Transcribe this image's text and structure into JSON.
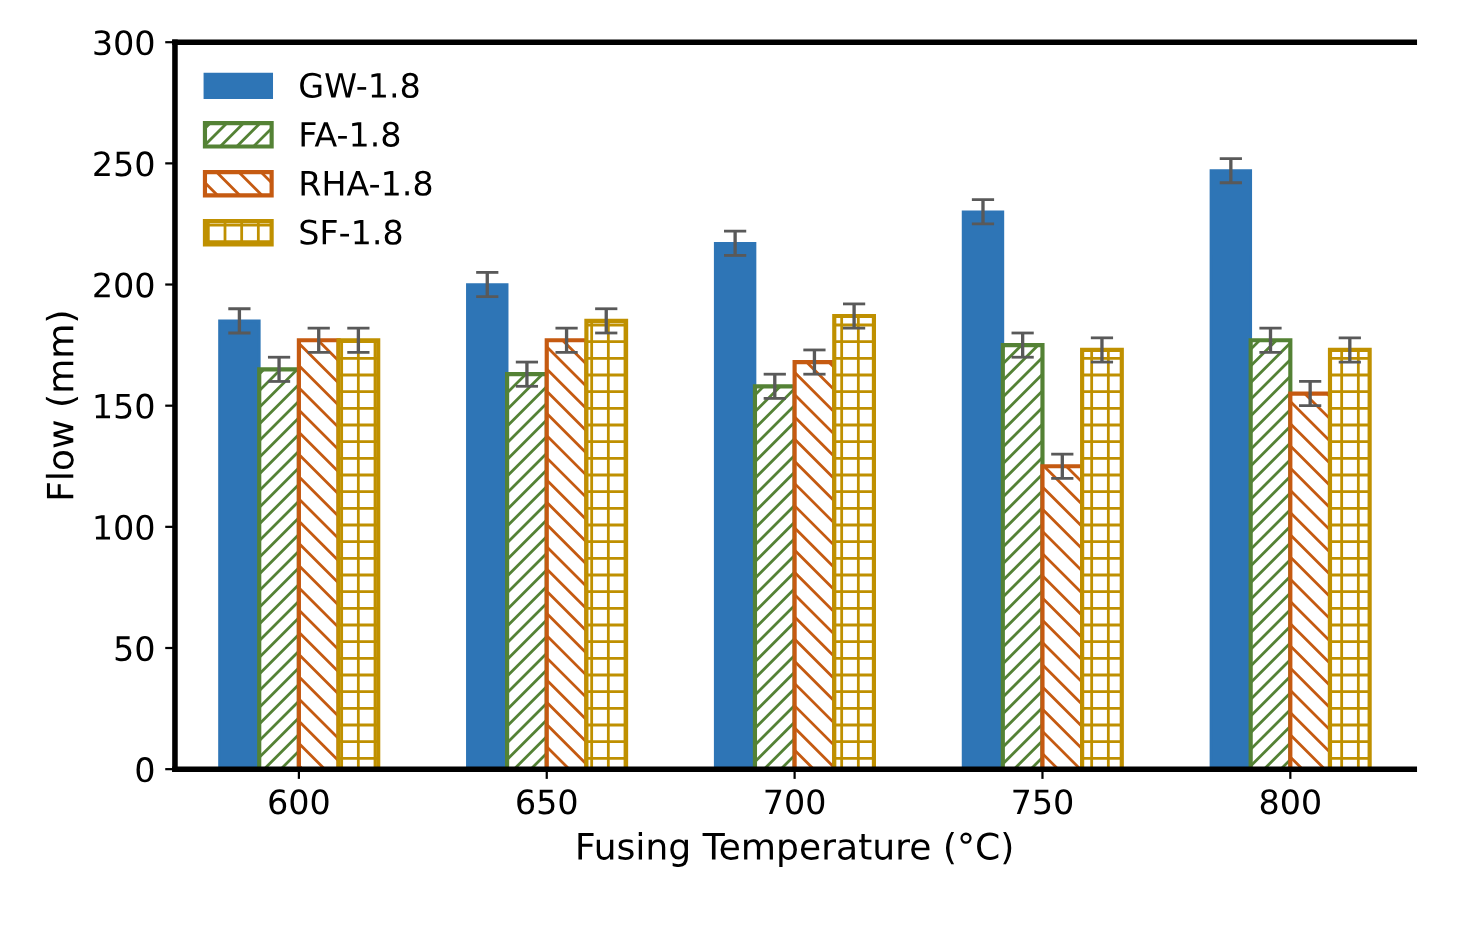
{
  "chart_data": {
    "type": "bar",
    "xlabel": "Fusing Temperature (°C)",
    "ylabel": "Flow (mm)",
    "categories": [
      "600",
      "650",
      "700",
      "750",
      "800"
    ],
    "series": [
      {
        "name": "GW-1.8",
        "color": "#2e75b6",
        "values": [
          185,
          200,
          217,
          230,
          247
        ],
        "errors": [
          5,
          5,
          5,
          5,
          5
        ]
      },
      {
        "name": "FA-1.8",
        "color": "#548235",
        "values": [
          165,
          163,
          158,
          175,
          177
        ],
        "errors": [
          5,
          5,
          5,
          5,
          5
        ]
      },
      {
        "name": "RHA-1.8",
        "color": "#c55a11",
        "values": [
          177,
          177,
          168,
          125,
          155
        ],
        "errors": [
          5,
          5,
          5,
          5,
          5
        ]
      },
      {
        "name": "SF-1.8",
        "color": "#bf9000",
        "values": [
          177,
          185,
          187,
          173,
          173
        ],
        "errors": [
          5,
          5,
          5,
          5,
          5
        ]
      }
    ],
    "ylim": [
      0,
      300
    ],
    "yticks": [
      0,
      50,
      100,
      150,
      200,
      250,
      300
    ],
    "grid": false,
    "legend": "top left"
  }
}
